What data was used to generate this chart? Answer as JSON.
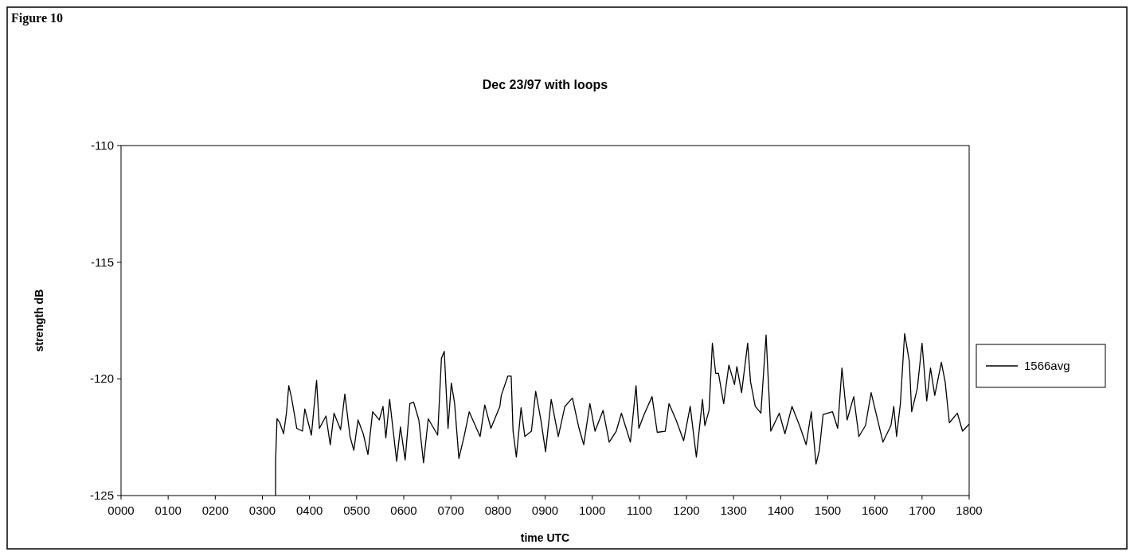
{
  "chart_data": {
    "type": "line",
    "title": "Dec 23/97 with loops",
    "xlabel": "time UTC",
    "ylabel": "strength dB",
    "annotations": [
      "Figure 10"
    ],
    "xlim": [
      0,
      1800
    ],
    "xticks": [
      {
        "value": 0,
        "label": "0000"
      },
      {
        "value": 100,
        "label": "0100"
      },
      {
        "value": 200,
        "label": "0200"
      },
      {
        "value": 300,
        "label": "0300"
      },
      {
        "value": 400,
        "label": "0400"
      },
      {
        "value": 500,
        "label": "0500"
      },
      {
        "value": 600,
        "label": "0600"
      },
      {
        "value": 700,
        "label": "0700"
      },
      {
        "value": 800,
        "label": "0800"
      },
      {
        "value": 900,
        "label": "0900"
      },
      1000,
      1100,
      1200,
      1300,
      1400,
      1500,
      1600,
      1700,
      1800
    ],
    "ylim": [
      -125,
      -110
    ],
    "yticks": [
      -125,
      -120,
      -115,
      -110
    ],
    "grid": false,
    "legend": "right",
    "marker": "none",
    "line_style": "solid",
    "series": [
      {
        "name": "1566avg",
        "color": "#000000",
        "x": [
          328,
          328,
          331,
          337,
          345,
          351,
          356,
          362,
          373,
          385,
          390,
          404,
          415,
          421,
          435,
          444,
          452,
          466,
          475,
          486,
          494,
          503,
          514,
          524,
          534,
          548,
          556,
          562,
          570,
          585,
          593,
          603,
          613,
          621,
          632,
          642,
          652,
          672,
          680,
          686,
          694,
          701,
          708,
          717,
          728,
          739,
          762,
          772,
          785,
          804,
          807,
          821,
          828,
          832,
          839,
          849,
          857,
          871,
          880,
          891,
          901,
          913,
          928,
          942,
          958,
          972,
          982,
          995,
          1006,
          1023,
          1036,
          1051,
          1062,
          1081,
          1093,
          1099,
          1110,
          1127,
          1138,
          1155,
          1163,
          1178,
          1194,
          1208,
          1221,
          1234,
          1239,
          1248,
          1255,
          1262,
          1268,
          1279,
          1290,
          1302,
          1307,
          1317,
          1330,
          1336,
          1346,
          1358,
          1369,
          1379,
          1397,
          1409,
          1424,
          1440,
          1454,
          1465,
          1475,
          1482,
          1490,
          1510,
          1521,
          1530,
          1541,
          1555,
          1566,
          1580,
          1592,
          1603,
          1617,
          1634,
          1640,
          1646,
          1654,
          1663,
          1673,
          1678,
          1690,
          1700,
          1710,
          1718,
          1727,
          1741,
          1749,
          1758,
          1775,
          1786,
          1800
        ],
        "values": [
          -125,
          -123.53,
          -121.71,
          -121.88,
          -122.35,
          -121.47,
          -120.29,
          -120.82,
          -122.12,
          -122.24,
          -121.29,
          -122.41,
          -120.06,
          -122.12,
          -121.59,
          -122.82,
          -121.47,
          -122.18,
          -120.65,
          -122.47,
          -123.06,
          -121.76,
          -122.35,
          -123.24,
          -121.41,
          -121.76,
          -121.18,
          -122.53,
          -120.88,
          -123.53,
          -122.06,
          -123.47,
          -121.06,
          -121,
          -121.76,
          -123.59,
          -121.71,
          -122.41,
          -119.12,
          -118.82,
          -122.12,
          -120.18,
          -121.06,
          -123.41,
          -122.47,
          -121.41,
          -122.47,
          -121.12,
          -122.12,
          -121.18,
          -120.71,
          -119.88,
          -119.88,
          -122.24,
          -123.35,
          -121.24,
          -122.47,
          -122.24,
          -120.53,
          -121.76,
          -123.12,
          -120.88,
          -122.47,
          -121.18,
          -120.82,
          -122.12,
          -122.82,
          -121.06,
          -122.24,
          -121.35,
          -122.71,
          -122.24,
          -121.47,
          -122.71,
          -120.29,
          -122.12,
          -121.53,
          -120.76,
          -122.29,
          -122.24,
          -121.06,
          -121.76,
          -122.65,
          -121.18,
          -123.35,
          -120.88,
          -122,
          -121.35,
          -118.47,
          -119.76,
          -119.76,
          -121.06,
          -119.41,
          -120.24,
          -119.47,
          -120.59,
          -118.47,
          -120.12,
          -121.18,
          -121.47,
          -118.12,
          -122.24,
          -121.47,
          -122.35,
          -121.18,
          -122,
          -122.82,
          -121.41,
          -123.65,
          -123.06,
          -121.53,
          -121.41,
          -122.12,
          -119.53,
          -121.76,
          -120.76,
          -122.47,
          -122,
          -120.59,
          -121.53,
          -122.71,
          -122,
          -121.18,
          -122.47,
          -121.06,
          -118.06,
          -119.24,
          -121.41,
          -120.41,
          -118.47,
          -120.94,
          -119.53,
          -120.71,
          -119.29,
          -120.12,
          -121.88,
          -121.47,
          -122.24,
          -121.94
        ]
      }
    ]
  }
}
